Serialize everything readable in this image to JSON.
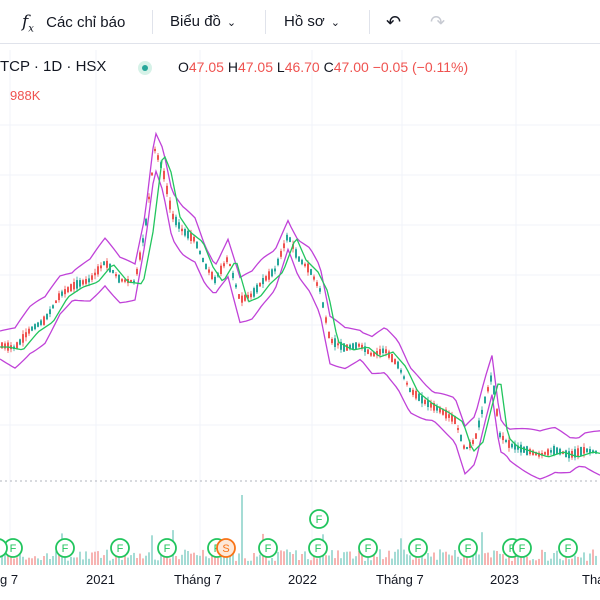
{
  "toolbar": {
    "indicators_label": "Các chỉ báo",
    "chart_type_label": "Biểu đồ",
    "profile_label": "Hồ sơ",
    "indicators_icon": "function-icon",
    "chevron_icon": "chevron-down-icon",
    "undo_icon": "undo-icon",
    "redo_icon": "redo-icon"
  },
  "legend": {
    "symbol": "TCP · 1D · HSX",
    "status_icon": "market-status-dot-icon",
    "o_key": "O",
    "o_val": "47.05",
    "h_key": "H",
    "h_val": "47.05",
    "l_key": "L",
    "l_val": "46.70",
    "c_key": "C",
    "c_val": "47.00",
    "change": "−0.05 (−0.11%)",
    "volume": "988K"
  },
  "colors": {
    "up": "#26a69a",
    "down": "#ef5350",
    "band": "#c042d8",
    "ma": "#22c55e",
    "marker": "#22c55e",
    "marker_split": "#f97316"
  },
  "markers": [
    {
      "label": "F",
      "type": "dividend"
    },
    {
      "label": "F",
      "type": "dividend"
    },
    {
      "label": "F",
      "type": "dividend"
    },
    {
      "label": "F",
      "type": "dividend"
    },
    {
      "label": "F",
      "type": "dividend"
    },
    {
      "label": "S",
      "type": "split"
    },
    {
      "label": "F",
      "type": "dividend"
    },
    {
      "label": "F",
      "type": "dividend"
    },
    {
      "label": "F",
      "type": "dividend"
    },
    {
      "label": "F",
      "type": "dividend"
    },
    {
      "label": "F",
      "type": "dividend"
    },
    {
      "label": "F",
      "type": "dividend"
    },
    {
      "label": "F",
      "type": "dividend"
    },
    {
      "label": "F",
      "type": "dividend"
    },
    {
      "label": "F",
      "type": "dividend"
    },
    {
      "label": "F",
      "type": "dividend"
    },
    {
      "label": "F",
      "type": "dividend"
    }
  ],
  "time_axis": [
    "g 7",
    "2021",
    "Tháng 7",
    "2022",
    "Tháng 7",
    "2023",
    "Thá"
  ]
}
